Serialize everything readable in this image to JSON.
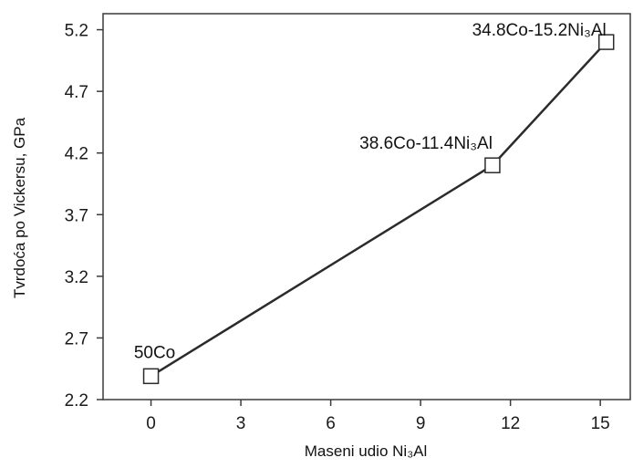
{
  "chart_data": {
    "type": "line",
    "xlabel": "Maseni udio Ni₃Al",
    "ylabel": "Tvrdoća po Vickersu, GPa",
    "xlim": [
      -1.6,
      16.0
    ],
    "ylim": [
      2.2,
      5.33
    ],
    "x_ticks": [
      0,
      3,
      6,
      9,
      12,
      15
    ],
    "y_ticks": [
      2.2,
      2.7,
      3.2,
      3.7,
      4.2,
      4.7,
      5.2
    ],
    "y_tick_labels": [
      "2.2",
      "2.7",
      "3.2",
      "3.7",
      "4.2",
      "4.7",
      "5.2"
    ],
    "series": [
      {
        "x": [
          0,
          11.4,
          15.2
        ],
        "y": [
          2.39,
          4.1,
          5.1
        ],
        "marker": "open-square",
        "labels": [
          "50Co",
          "38.6Co-11.4Ni₃Al",
          "34.8Co-15.2Ni₃Al"
        ]
      }
    ],
    "grid": false,
    "legend": "none",
    "colors": {
      "line": "#2b2b2b",
      "marker_fill": "#ffffff"
    }
  }
}
